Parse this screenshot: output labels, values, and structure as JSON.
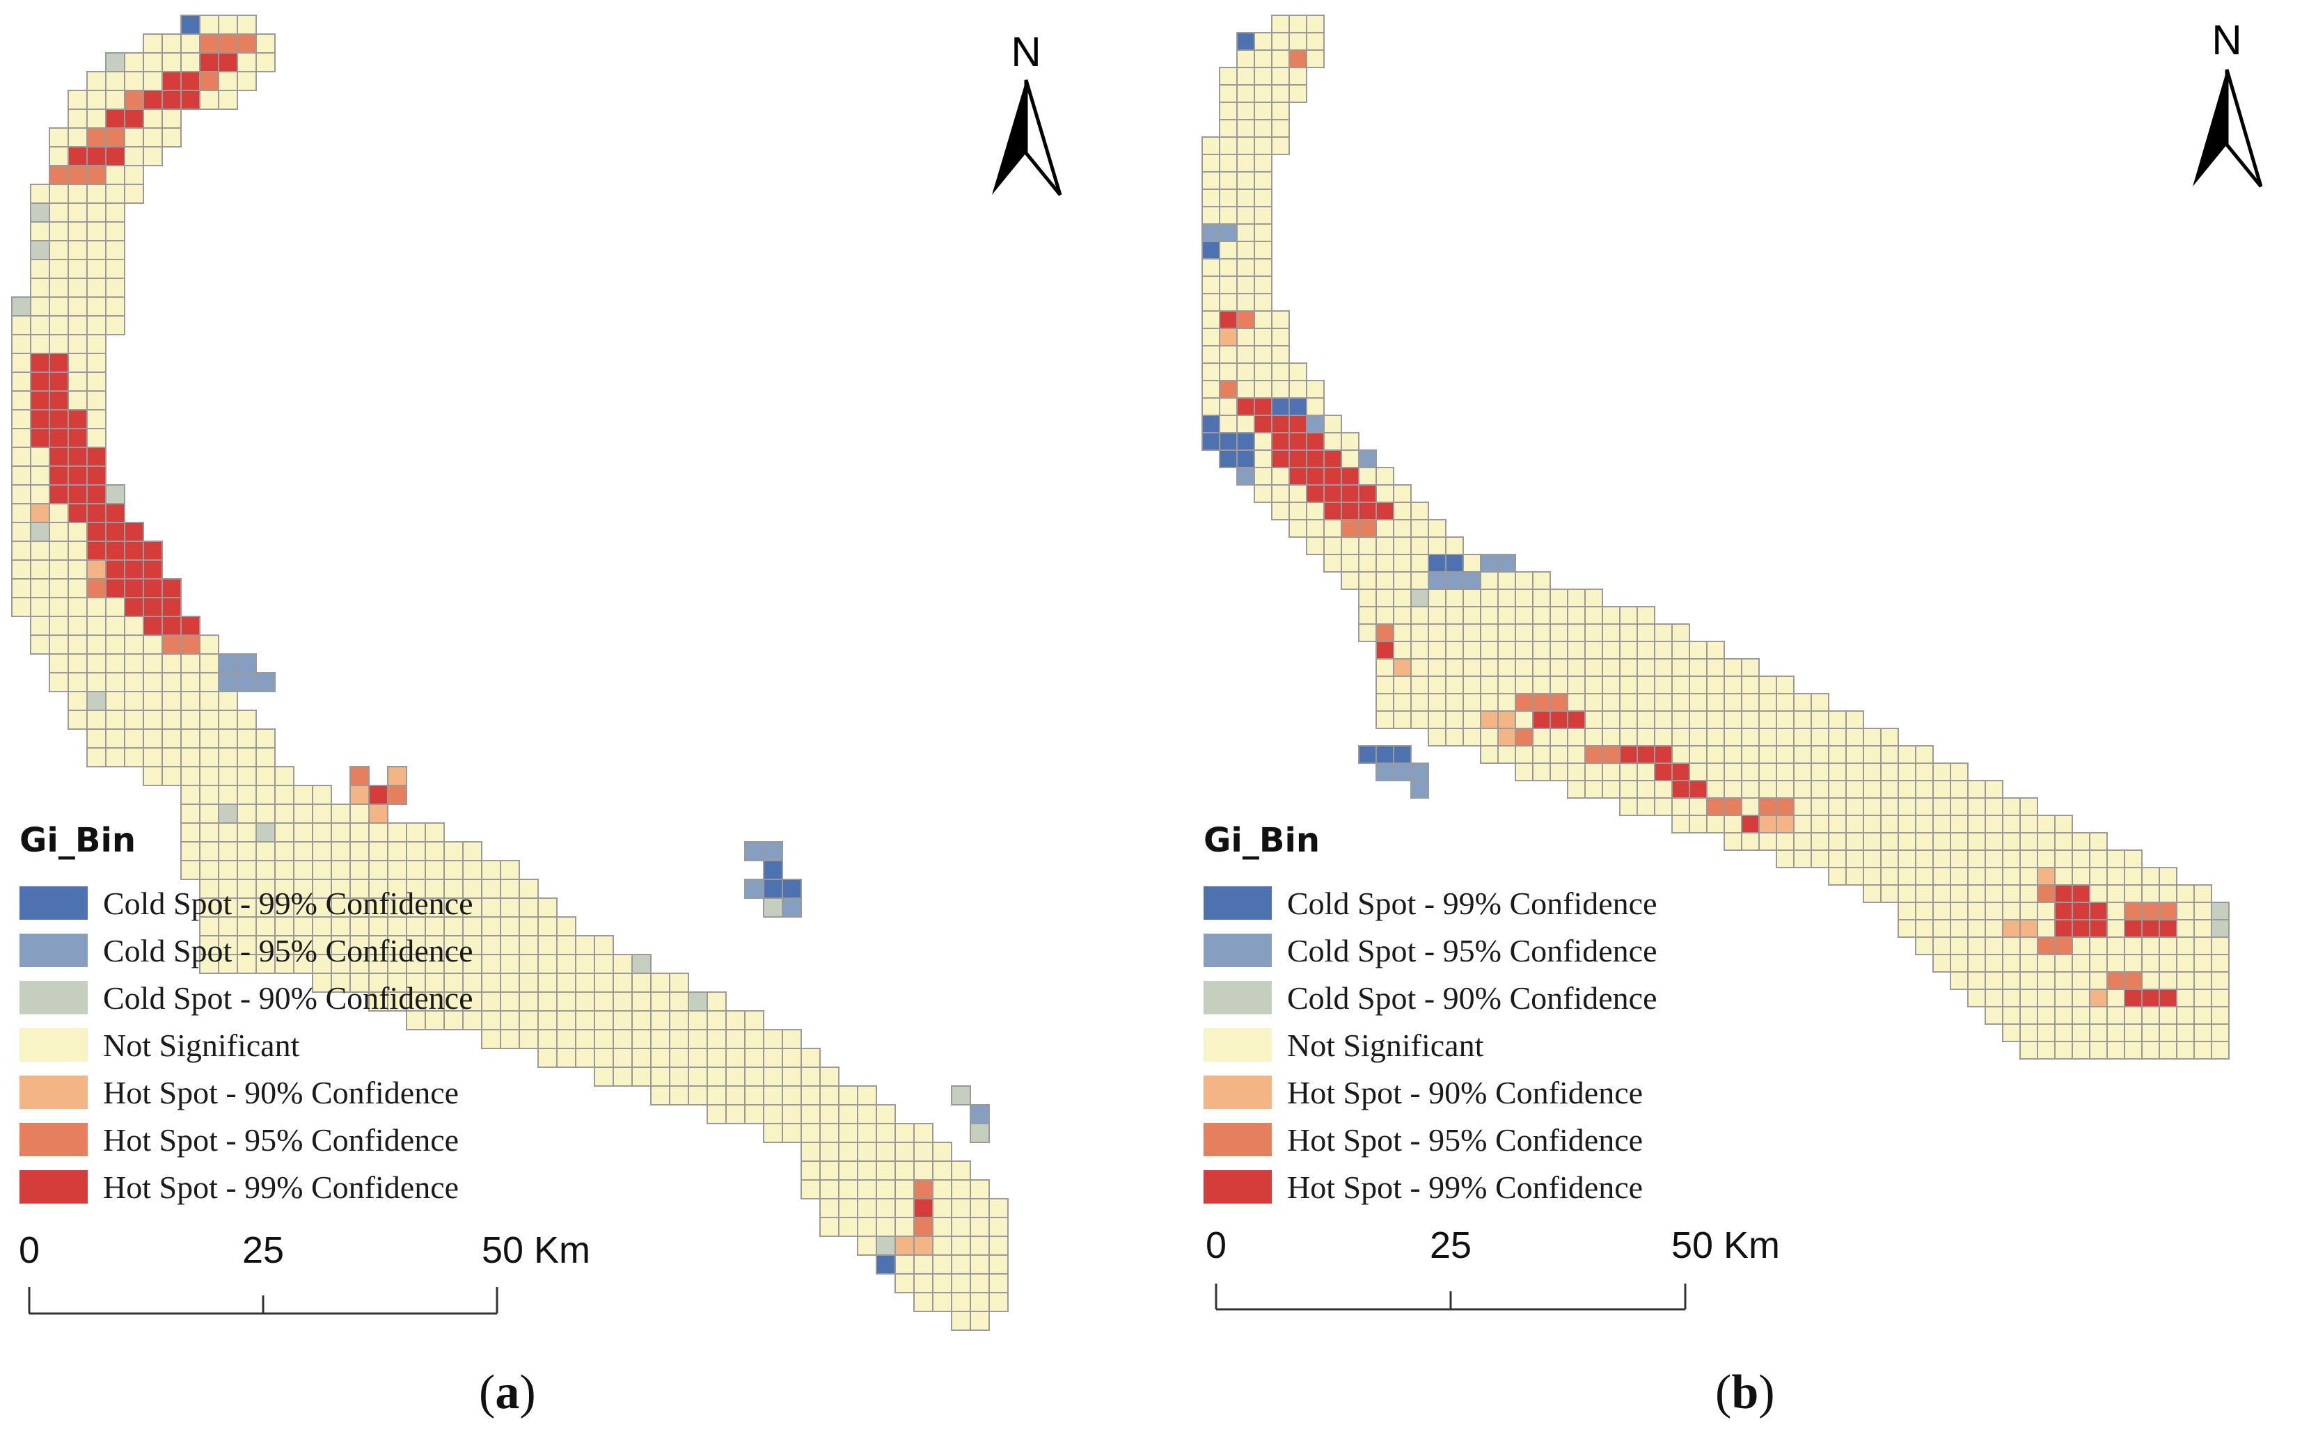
{
  "panels": [
    {
      "id": "a",
      "caption": "a",
      "legend_title": "Gi_Bin",
      "north_label": "N",
      "scale_labels": [
        "0",
        "25",
        "50 Km"
      ]
    },
    {
      "id": "b",
      "caption": "b",
      "legend_title": "Gi_Bin",
      "north_label": "N",
      "scale_labels": [
        "0",
        "25",
        "50 Km"
      ]
    }
  ],
  "legend_items": [
    {
      "label": "Cold Spot - 99% Confidence",
      "color": "#4e72b0"
    },
    {
      "label": "Cold Spot - 95% Confidence",
      "color": "#869fc0"
    },
    {
      "label": "Cold Spot - 90% Confidence",
      "color": "#c5cebf"
    },
    {
      "label": "Not Significant",
      "color": "#f8f4c5"
    },
    {
      "label": "Hot Spot - 90% Confidence",
      "color": "#f3b486"
    },
    {
      "label": "Hot Spot - 95% Confidence",
      "color": "#e57f5e"
    },
    {
      "label": "Hot Spot - 99% Confidence",
      "color": "#d43d3a"
    }
  ],
  "map_style": {
    "grid_line_color": "#9a9a9a",
    "category_codes": {
      "cold99": 0,
      "cold95": 1,
      "cold90": 2,
      "not_significant": 3,
      "hot90": 4,
      "hot95": 5,
      "hot99": 6
    }
  }
}
